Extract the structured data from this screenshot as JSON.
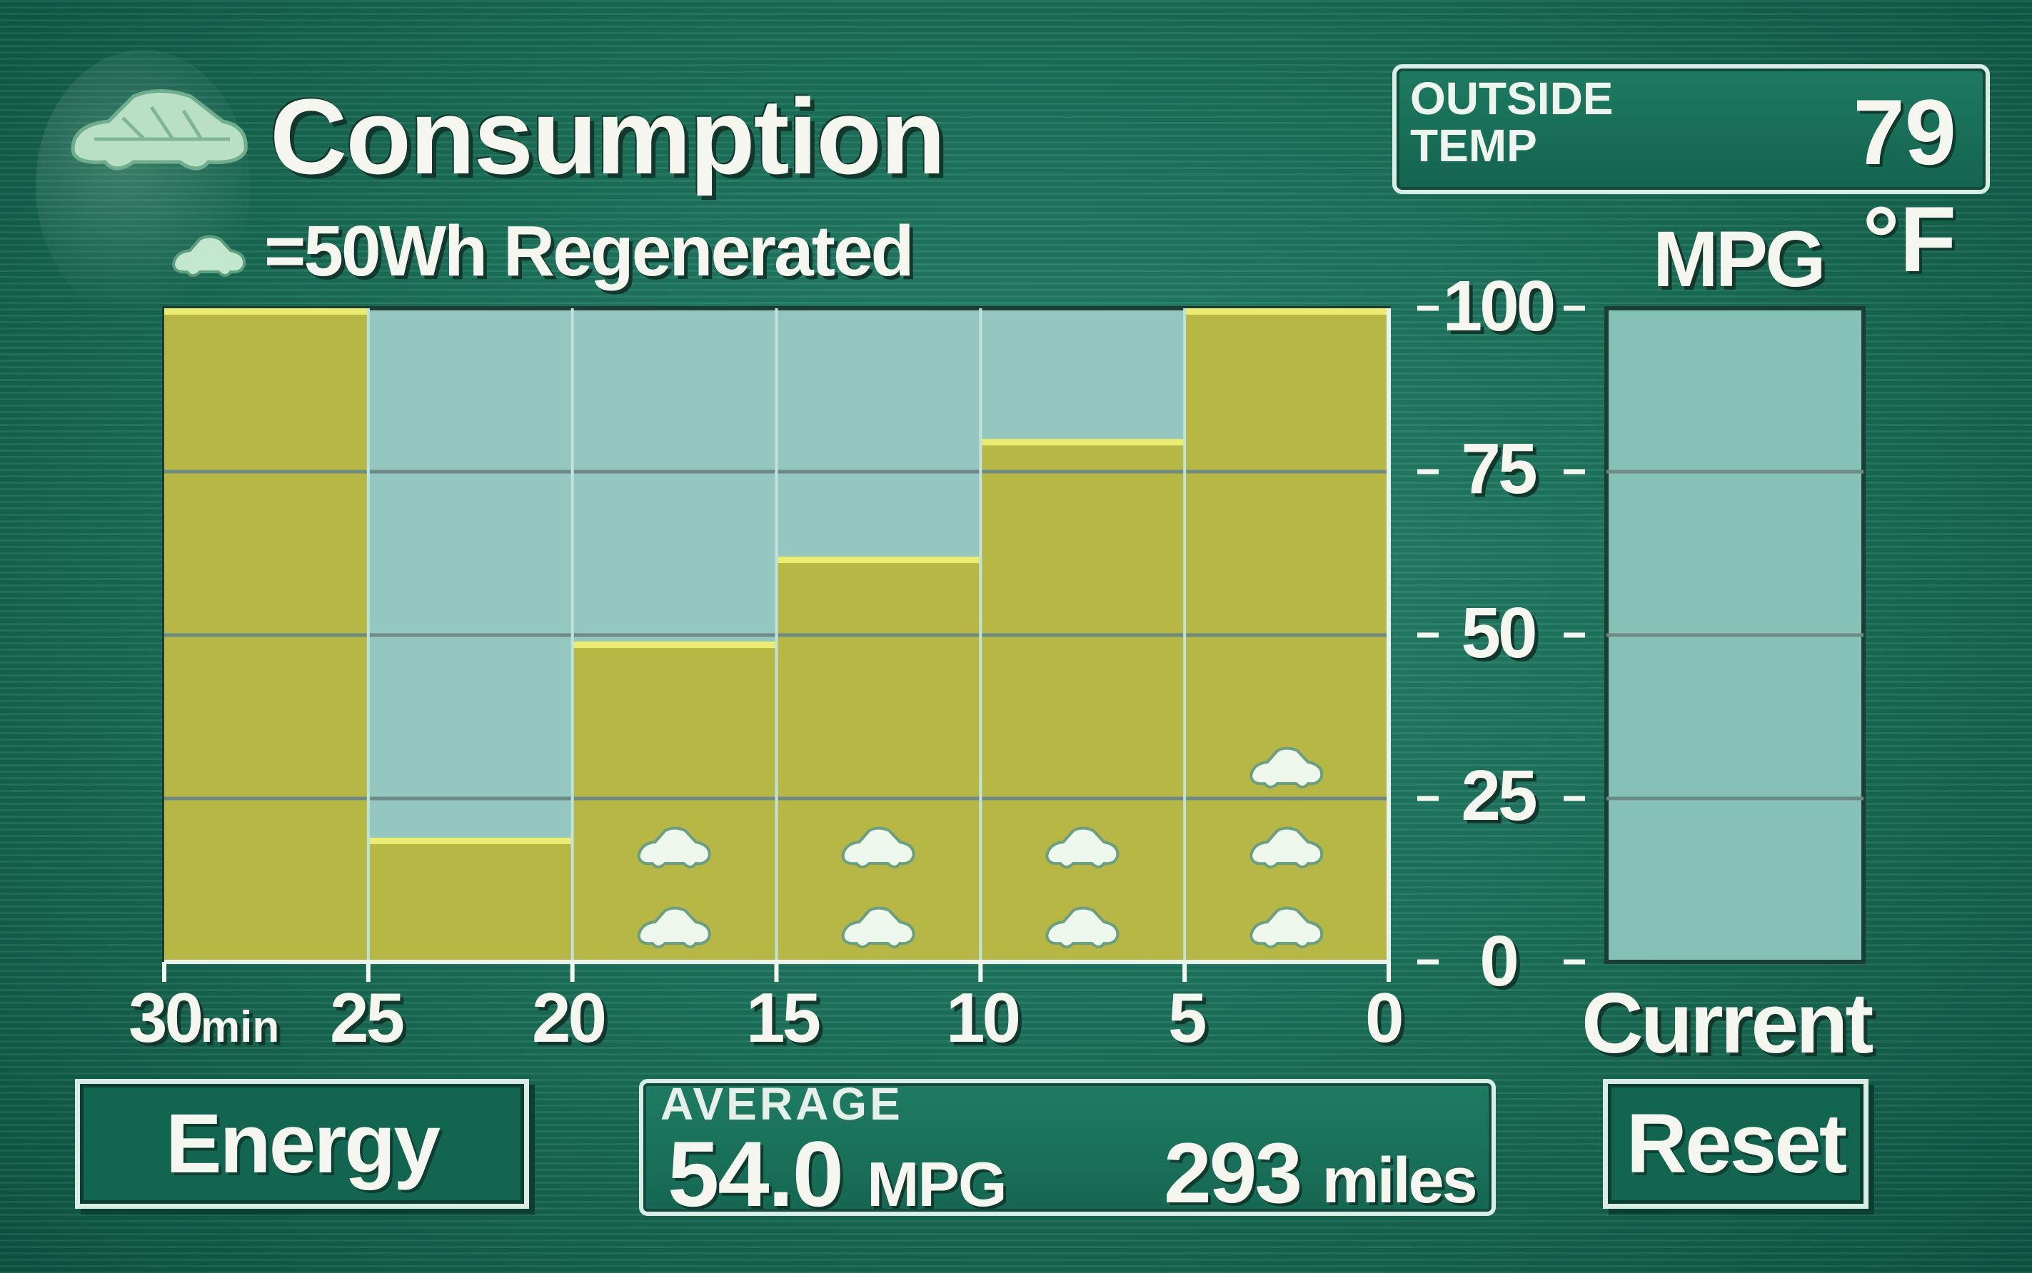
{
  "title": "Consumption",
  "legend": {
    "icon": "leaf-car-icon",
    "text": "=50Wh Regenerated"
  },
  "outside_temp": {
    "label_line1": "OUTSIDE",
    "label_line2": "TEMP",
    "value": "79 °F"
  },
  "mpg_label": "MPG",
  "current_label": "Current",
  "energy_button": "Energy",
  "reset_button": "Reset",
  "average": {
    "title": "AVERAGE",
    "mpg_value": "54.0",
    "mpg_unit": "MPG",
    "miles_value": "293",
    "miles_unit": "miles"
  },
  "colors": {
    "bar": "#b7b745",
    "bar_top": "#eceb72",
    "plot_bg": "#93c7bf",
    "current_bg": "#86c1b6",
    "grid": "#6d8a84",
    "regen_icon": "#eef7ec"
  },
  "chart_data": {
    "type": "bar",
    "title": "",
    "xlabel": "",
    "ylabel": "MPG",
    "ylim": [
      0,
      100
    ],
    "x_tick_labels": [
      "30min",
      "25",
      "20",
      "15",
      "10",
      "5",
      "0"
    ],
    "y_tick_labels": [
      "100",
      "75",
      "50",
      "25",
      "0"
    ],
    "categories": [
      "30-25",
      "25-20",
      "20-15",
      "15-10",
      "10-5",
      "5-0"
    ],
    "series": [
      {
        "values": [
          100,
          19,
          49,
          62,
          80,
          100
        ]
      }
    ],
    "regenerated_icons_per_bar": [
      0,
      0,
      2,
      2,
      2,
      3
    ],
    "regen_unit_wh": 50,
    "grid": true
  }
}
